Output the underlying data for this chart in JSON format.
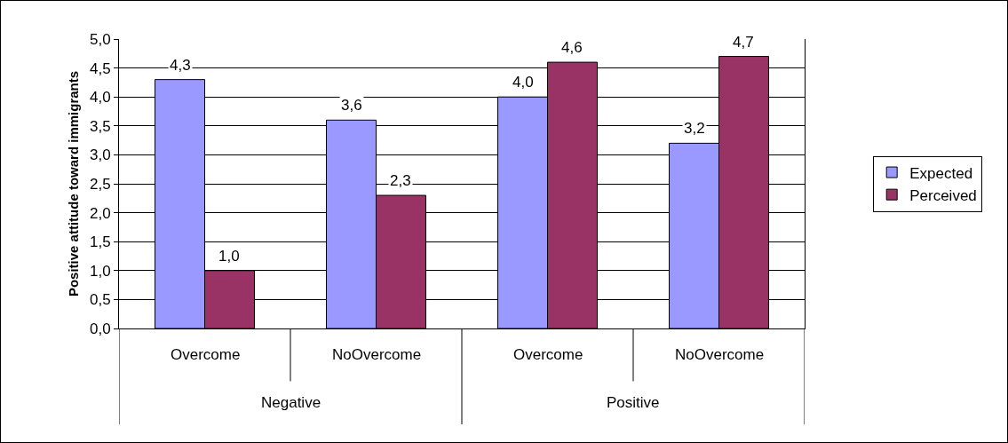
{
  "chart_data": {
    "type": "bar",
    "ylabel": "Positive attitude toward immigrants",
    "categories": [
      "Overcome",
      "NoOvercome",
      "Overcome",
      "NoOvercome"
    ],
    "annotations": [
      "Negative",
      "Positive"
    ],
    "series": [
      {
        "name": "Expected",
        "color": "#9999ff",
        "values": [
          4.3,
          3.6,
          4.0,
          3.2
        ],
        "value_labels": [
          "4,3",
          "3,6",
          "4,0",
          "3,2"
        ]
      },
      {
        "name": "Perceived",
        "color": "#993366",
        "values": [
          1.0,
          2.3,
          4.6,
          4.7
        ],
        "value_labels": [
          "1,0",
          "2,3",
          "4,6",
          "4,7"
        ]
      }
    ],
    "ylim": [
      0,
      5
    ],
    "yticks": [
      {
        "value": 0,
        "label": "0,0"
      },
      {
        "value": 0.5,
        "label": "0,5"
      },
      {
        "value": 1,
        "label": "1,0"
      },
      {
        "value": 1.5,
        "label": "1,5"
      },
      {
        "value": 2,
        "label": "2,0"
      },
      {
        "value": 2.5,
        "label": "2,5"
      },
      {
        "value": 3,
        "label": "3,0"
      },
      {
        "value": 3.5,
        "label": "3,5"
      },
      {
        "value": 4,
        "label": "4,0"
      },
      {
        "value": 4.5,
        "label": "4,5"
      },
      {
        "value": 5,
        "label": "5,0"
      }
    ],
    "grid": "y",
    "legend": "right"
  }
}
